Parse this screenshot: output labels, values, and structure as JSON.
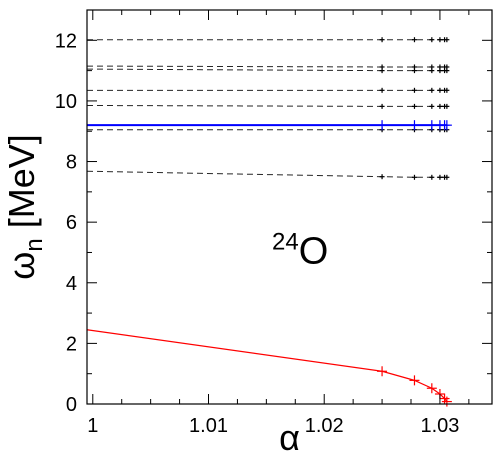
{
  "chart_data": {
    "type": "line",
    "title": "",
    "xlabel": "α",
    "ylabel": "ω",
    "ylabel_subscript": "n",
    "ylabel_unit": " [MeV]",
    "xlim": [
      0.9995,
      1.0345
    ],
    "ylim": [
      0,
      13
    ],
    "xticks": [
      1,
      1.01,
      1.02,
      1.03
    ],
    "xtick_labels": [
      "1",
      "1.01",
      "1.02",
      "1.03"
    ],
    "xminor_step": 0.0025,
    "yticks": [
      0,
      2,
      4,
      6,
      8,
      10,
      12
    ],
    "ytick_labels": [
      "0",
      "2",
      "4",
      "6",
      "8",
      "10",
      "12"
    ],
    "yminor_step": 1,
    "grid": false,
    "annotation": {
      "superscript": "24",
      "text": "O",
      "x": 1.0205,
      "y": 5.1
    },
    "series": [
      {
        "style": "dashed",
        "color": "#000000",
        "points": [
          [
            0.9995,
            12.02
          ],
          [
            1.025,
            12.02
          ],
          [
            1.0278,
            12.02
          ],
          [
            1.0293,
            12.02
          ],
          [
            1.03,
            12.02
          ],
          [
            1.0304,
            12.02
          ],
          [
            1.0306,
            12.02
          ]
        ]
      },
      {
        "style": "dashed",
        "color": "#000000",
        "points": [
          [
            0.9995,
            11.15
          ],
          [
            1.025,
            11.12
          ],
          [
            1.0278,
            11.12
          ],
          [
            1.0293,
            11.12
          ],
          [
            1.03,
            11.12
          ],
          [
            1.0304,
            11.12
          ],
          [
            1.0306,
            11.12
          ]
        ]
      },
      {
        "style": "dashed",
        "color": "#000000",
        "points": [
          [
            0.9995,
            11.05
          ],
          [
            1.025,
            11.0
          ],
          [
            1.0278,
            11.0
          ],
          [
            1.0293,
            11.0
          ],
          [
            1.03,
            11.0
          ],
          [
            1.0304,
            11.0
          ],
          [
            1.0306,
            11.0
          ]
        ]
      },
      {
        "style": "dashed",
        "color": "#000000",
        "points": [
          [
            0.9995,
            10.35
          ],
          [
            1.025,
            10.35
          ],
          [
            1.0278,
            10.35
          ],
          [
            1.0293,
            10.35
          ],
          [
            1.03,
            10.35
          ],
          [
            1.0304,
            10.35
          ],
          [
            1.0306,
            10.35
          ]
        ]
      },
      {
        "style": "dashed",
        "color": "#000000",
        "points": [
          [
            0.9995,
            9.85
          ],
          [
            1.025,
            9.82
          ],
          [
            1.0278,
            9.82
          ],
          [
            1.0293,
            9.82
          ],
          [
            1.03,
            9.82
          ],
          [
            1.0304,
            9.82
          ],
          [
            1.0306,
            9.82
          ]
        ]
      },
      {
        "style": "dashed",
        "color": "#000000",
        "points": [
          [
            0.9995,
            9.05
          ],
          [
            1.025,
            9.05
          ],
          [
            1.0278,
            9.05
          ],
          [
            1.0293,
            9.05
          ],
          [
            1.03,
            9.05
          ],
          [
            1.0304,
            9.05
          ],
          [
            1.0306,
            9.05
          ]
        ]
      },
      {
        "style": "dashed",
        "color": "#000000",
        "points": [
          [
            0.9995,
            7.68
          ],
          [
            1.025,
            7.5
          ],
          [
            1.0278,
            7.48
          ],
          [
            1.0293,
            7.48
          ],
          [
            1.03,
            7.48
          ],
          [
            1.0304,
            7.48
          ],
          [
            1.0306,
            7.48
          ]
        ]
      },
      {
        "style": "solid",
        "color": "#0000ff",
        "points": [
          [
            0.9995,
            9.2
          ],
          [
            1.025,
            9.2
          ],
          [
            1.0278,
            9.2
          ],
          [
            1.0293,
            9.2
          ],
          [
            1.03,
            9.2
          ],
          [
            1.0304,
            9.2
          ],
          [
            1.0306,
            9.2
          ]
        ]
      },
      {
        "style": "solid",
        "color": "#ff0000",
        "points": [
          [
            0.9995,
            2.45
          ],
          [
            1.025,
            1.08
          ],
          [
            1.0278,
            0.78
          ],
          [
            1.0293,
            0.52
          ],
          [
            1.03,
            0.33
          ],
          [
            1.0304,
            0.18
          ],
          [
            1.0306,
            0.08
          ]
        ]
      }
    ]
  }
}
